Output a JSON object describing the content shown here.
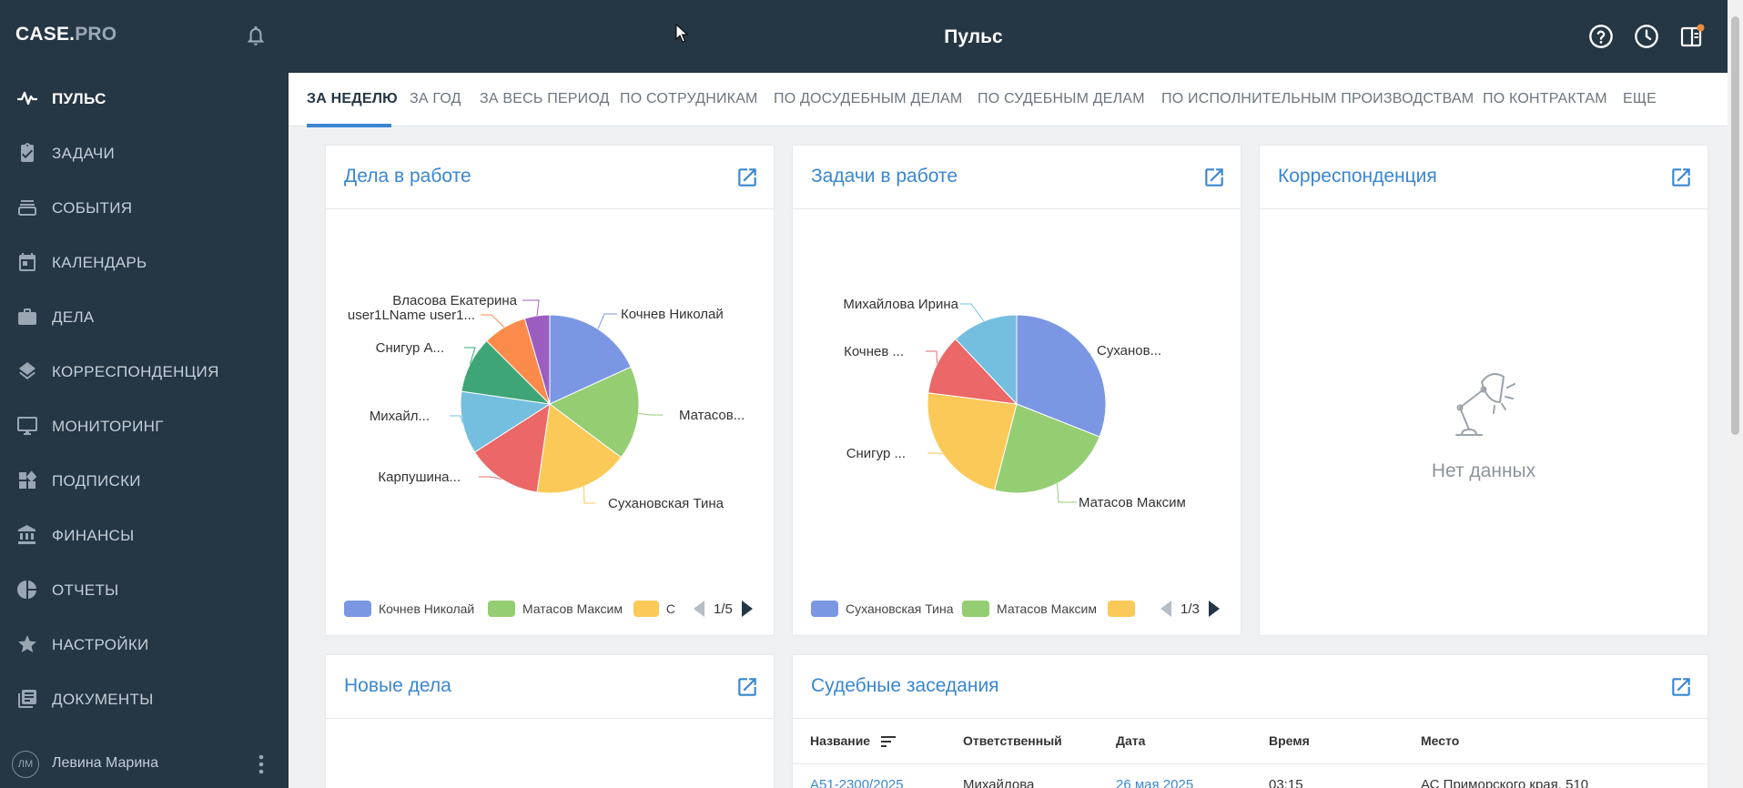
{
  "app": {
    "logo_main": "CASE.",
    "logo_pro": "PRO",
    "page_title": "Пульс"
  },
  "sidebar": {
    "items": [
      {
        "label": "ПУЛЬС",
        "icon": "pulse-icon"
      },
      {
        "label": "ЗАДАЧИ",
        "icon": "task-icon"
      },
      {
        "label": "СОБЫТИЯ",
        "icon": "events-icon"
      },
      {
        "label": "КАЛЕНДАРЬ",
        "icon": "calendar-icon"
      },
      {
        "label": "ДЕЛА",
        "icon": "briefcase-icon"
      },
      {
        "label": "КОРРЕСПОНДЕНЦИЯ",
        "icon": "layers-icon"
      },
      {
        "label": "МОНИТОРИНГ",
        "icon": "monitor-icon"
      },
      {
        "label": "ПОДПИСКИ",
        "icon": "widgets-icon"
      },
      {
        "label": "ФИНАНСЫ",
        "icon": "bank-icon"
      },
      {
        "label": "ОТЧЕТЫ",
        "icon": "pie-chart-icon"
      },
      {
        "label": "НАСТРОЙКИ",
        "icon": "star-icon"
      },
      {
        "label": "ДОКУМЕНТЫ",
        "icon": "documents-icon"
      }
    ],
    "user": {
      "initials": "ЛМ",
      "name": "Левина Марина"
    }
  },
  "tabs": [
    "ЗА НЕДЕЛЮ",
    "ЗА ГОД",
    "ЗА ВЕСЬ ПЕРИОД",
    "ПО СОТРУДНИКАМ",
    "ПО ДОСУДЕБНЫМ ДЕЛАМ",
    "ПО СУДЕБНЫМ ДЕЛАМ",
    "ПО ИСПОЛНИТЕЛЬНЫМ ПРОИЗВОДСТВАМ",
    "ПО КОНТРАКТАМ",
    "ЕЩЕ"
  ],
  "cards": {
    "cases": {
      "title": "Дела в работе",
      "pager": "1/5",
      "legend": [
        "Кочнев Николай",
        "Матасов Максим",
        "С"
      ]
    },
    "tasks": {
      "title": "Задачи в работе",
      "pager": "1/3",
      "legend": [
        "Сухановская Тина",
        "Матасов Максим",
        ""
      ]
    },
    "corr": {
      "title": "Корреспонденция",
      "empty": "Нет данных"
    },
    "new_cases": {
      "title": "Новые дела"
    },
    "hearings": {
      "title": "Судебные заседания",
      "columns": [
        "Название",
        "Ответственный",
        "Дата",
        "Время",
        "Место"
      ],
      "rows": [
        [
          "А51-2300/2025",
          "Михайлова",
          "26 мая 2025",
          "03:15",
          "АС Приморского края, 510"
        ]
      ]
    }
  },
  "chart_data": [
    {
      "type": "pie",
      "title": "Дела в работе",
      "labels": [
        "Кочнев Николай",
        "Матасов...",
        "Сухановская Тина",
        "Карпушина...",
        "Михайл...",
        "Снигур А...",
        "user1LName user1...",
        "Власова Екатерина"
      ],
      "values": [
        16,
        15,
        15,
        12,
        10,
        9,
        7,
        4
      ],
      "colors": [
        "#7b97e4",
        "#95cd73",
        "#fbc957",
        "#ec6767",
        "#74bedf",
        "#3ea676",
        "#fc8a4a",
        "#9b5ec0"
      ]
    },
    {
      "type": "pie",
      "title": "Задачи в работе",
      "labels": [
        "Суханов...",
        "Матасов Максим",
        "Снигур ...",
        "Кочнев ...",
        "Михайлова Ирина"
      ],
      "values": [
        31,
        23,
        23,
        11,
        12
      ],
      "colors": [
        "#7b97e4",
        "#95cd73",
        "#fbc957",
        "#ec6767",
        "#74bedf"
      ]
    }
  ]
}
